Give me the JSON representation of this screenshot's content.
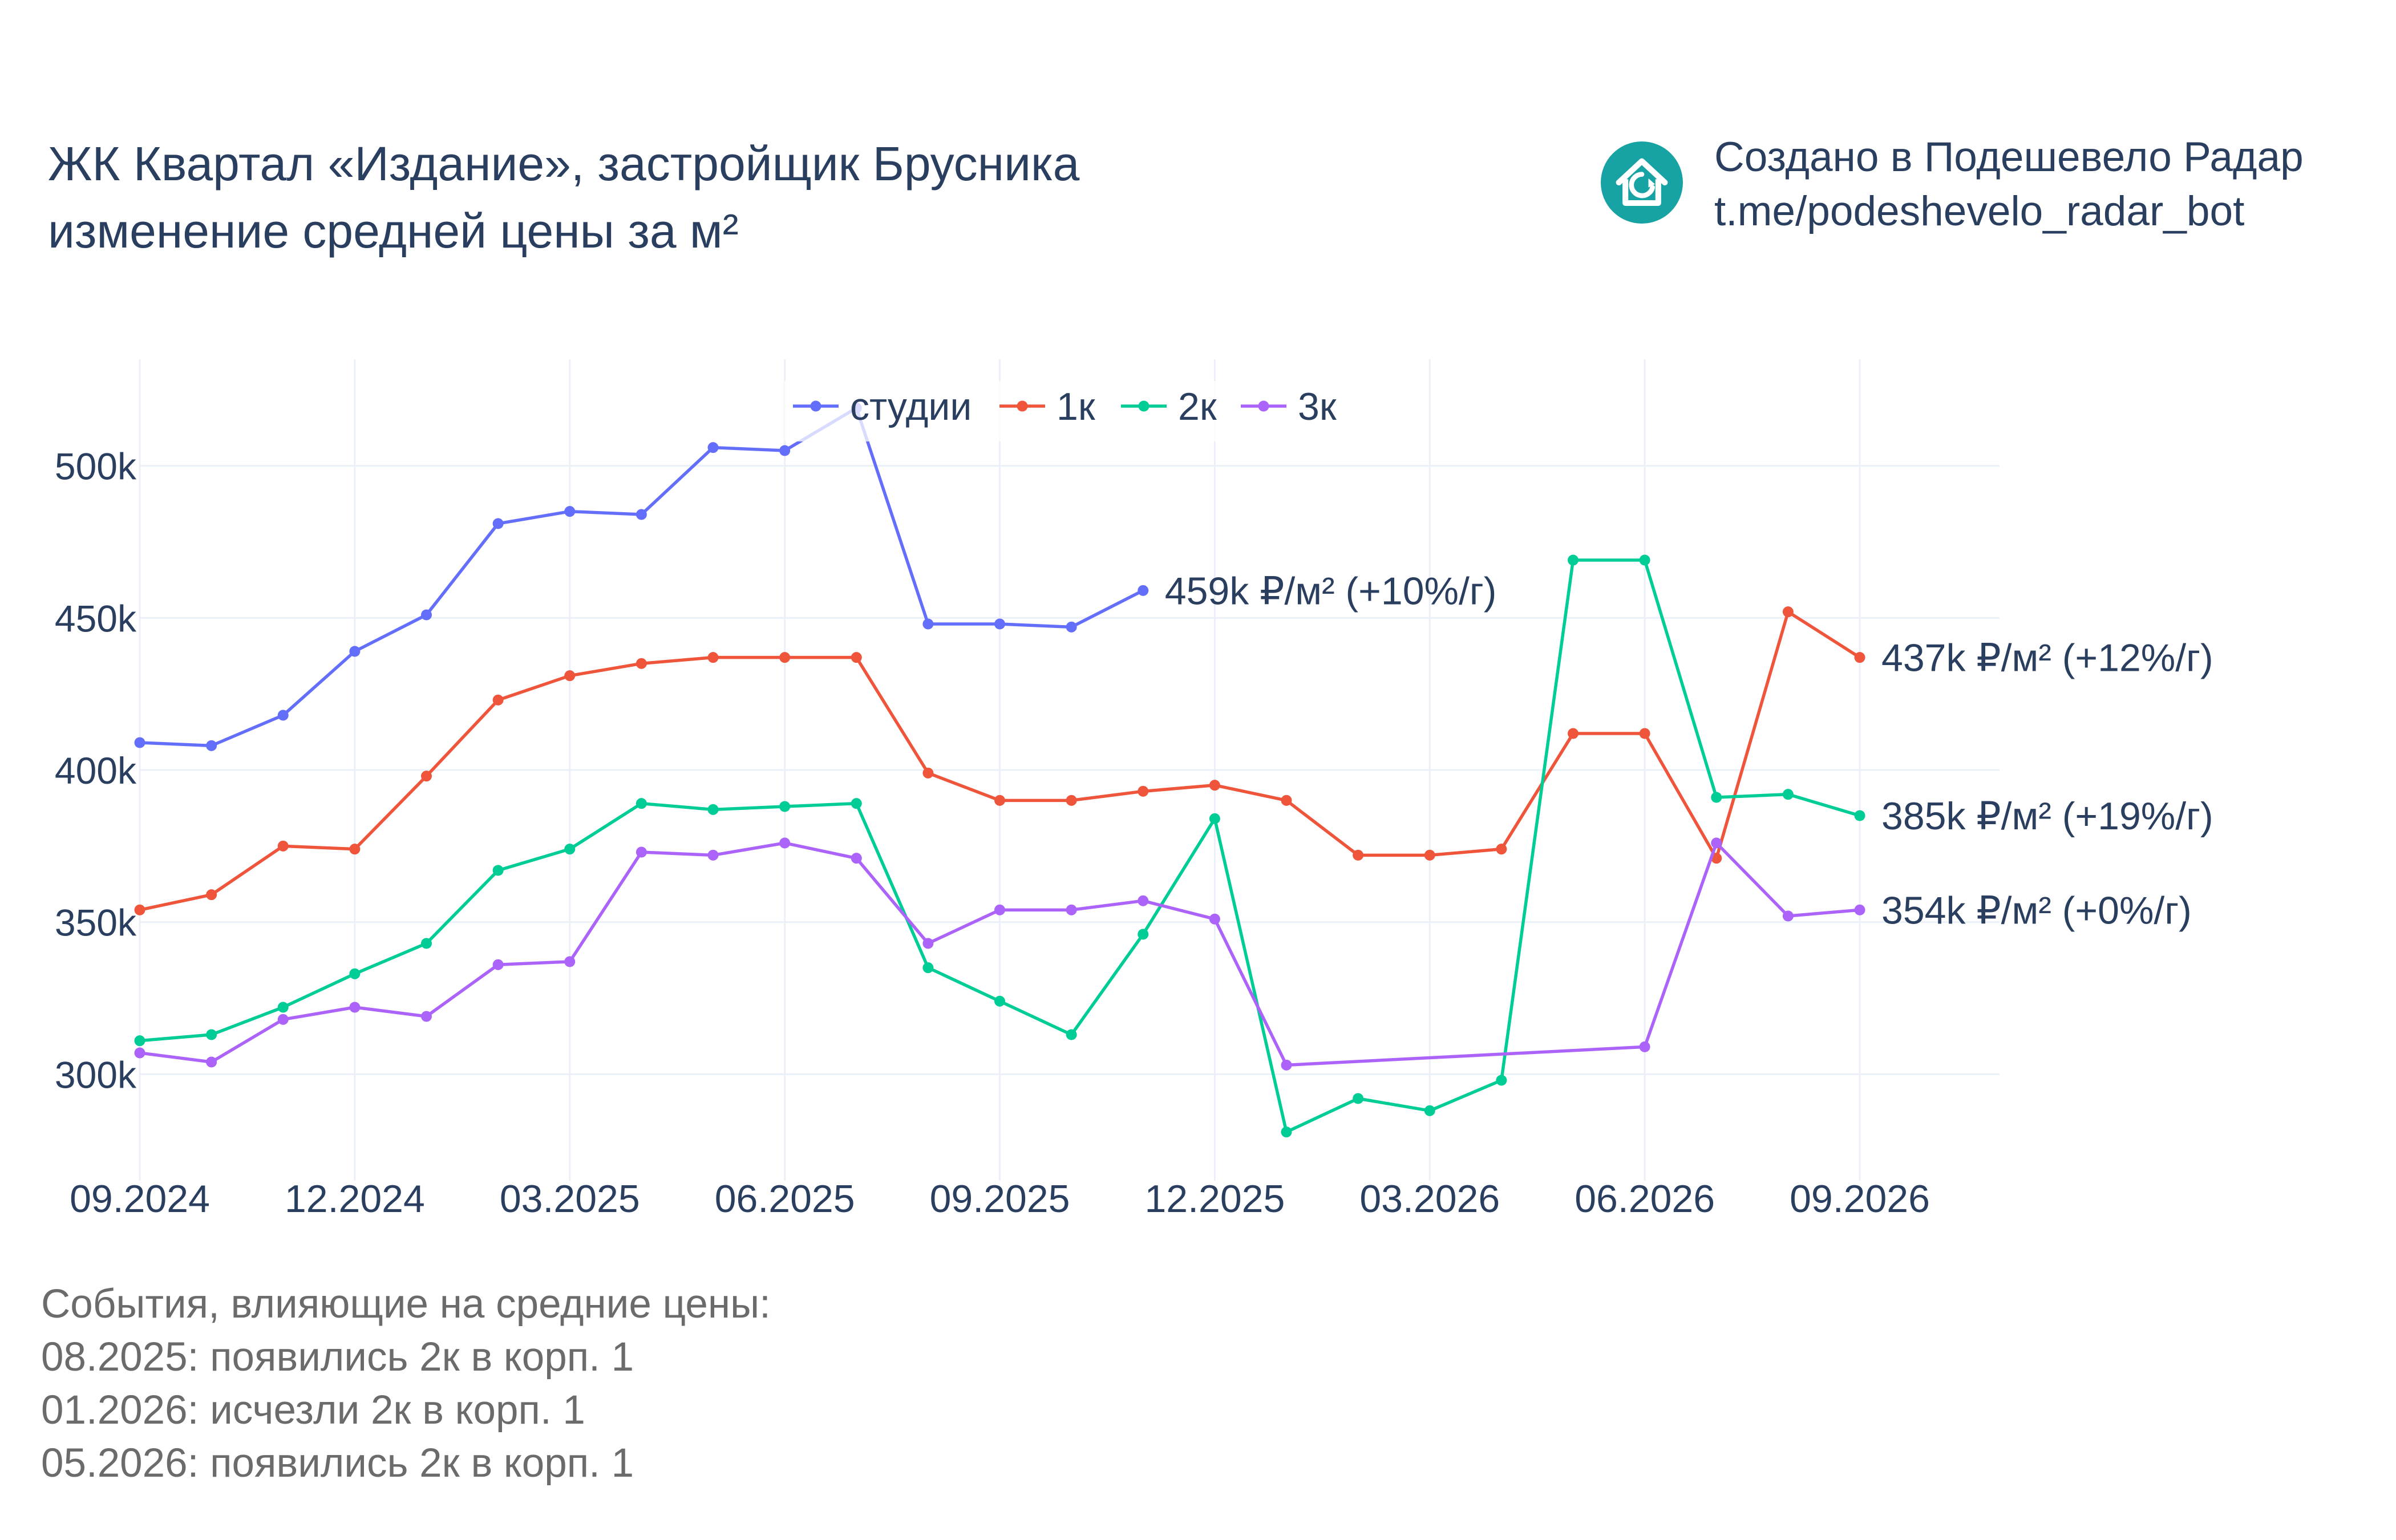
{
  "title": {
    "line1": "ЖК Квартал «Издание», застройщик Брусника",
    "line2": "изменение средней цены за м²"
  },
  "credits": {
    "line1": "Создано в Подешевело Радар",
    "line2": "t.me/podeshevelo_radar_bot",
    "logo_icon": "house-logo-icon",
    "logo_color": "#17a2a4"
  },
  "events": {
    "heading": "События, влияющие на средние цены:",
    "items": [
      "08.2025: появились 2к в корп. 1",
      "01.2026: исчезли 2к в корп. 1",
      "05.2026: появились 2к в корп. 1"
    ]
  },
  "chart_data": {
    "type": "line",
    "x": [
      "2024-09",
      "2024-10",
      "2024-11",
      "2024-12",
      "2025-01",
      "2025-02",
      "2025-03",
      "2025-04",
      "2025-05",
      "2025-06",
      "2025-07",
      "2025-08",
      "2025-09",
      "2025-10",
      "2025-11",
      "2025-12",
      "2026-01",
      "2026-02",
      "2026-03",
      "2026-04",
      "2026-05",
      "2026-06",
      "2026-07",
      "2026-08",
      "2026-09"
    ],
    "x_ticks": [
      "09.2024",
      "12.2024",
      "03.2025",
      "06.2025",
      "09.2025",
      "12.2025",
      "03.2026",
      "06.2026",
      "09.2026"
    ],
    "x_tick_values": [
      "2024-09",
      "2024-12",
      "2025-03",
      "2025-06",
      "2025-09",
      "2025-12",
      "2026-03",
      "2026-06",
      "2026-09"
    ],
    "y_ticks": [
      "300k",
      "350k",
      "400k",
      "450k",
      "500k"
    ],
    "y_tick_values": [
      300000,
      350000,
      400000,
      450000,
      500000
    ],
    "ylim": [
      265000,
      535000
    ],
    "grid": true,
    "legend_position": "top-center",
    "series": [
      {
        "name": "студии",
        "color": "#636efa",
        "values": [
          409000,
          408000,
          418000,
          439000,
          451000,
          481000,
          485000,
          484000,
          506000,
          505000,
          519000,
          448000,
          448000,
          447000,
          459000,
          null,
          null,
          null,
          null,
          null,
          null,
          null,
          null,
          null,
          null
        ],
        "end_label": "459k ₽/м² (+10%/г)"
      },
      {
        "name": "1к",
        "color": "#ef553b",
        "values": [
          354000,
          359000,
          375000,
          374000,
          398000,
          423000,
          431000,
          435000,
          437000,
          437000,
          437000,
          399000,
          390000,
          390000,
          393000,
          395000,
          390000,
          372000,
          372000,
          374000,
          412000,
          412000,
          371000,
          452000,
          437000
        ],
        "end_label": "437k ₽/м² (+12%/г)"
      },
      {
        "name": "2к",
        "color": "#00cc96",
        "values": [
          311000,
          313000,
          322000,
          333000,
          343000,
          367000,
          374000,
          389000,
          387000,
          388000,
          389000,
          335000,
          324000,
          313000,
          346000,
          384000,
          281000,
          292000,
          288000,
          298000,
          469000,
          469000,
          391000,
          392000,
          385000
        ],
        "end_label": "385k ₽/м² (+19%/г)"
      },
      {
        "name": "3к",
        "color": "#ab63fa",
        "values": [
          307000,
          304000,
          318000,
          322000,
          319000,
          336000,
          337000,
          373000,
          372000,
          376000,
          371000,
          343000,
          354000,
          354000,
          357000,
          351000,
          303000,
          null,
          null,
          null,
          null,
          309000,
          376000,
          352000,
          354000
        ],
        "end_label": "354k ₽/м² (+0%/г)"
      }
    ]
  }
}
